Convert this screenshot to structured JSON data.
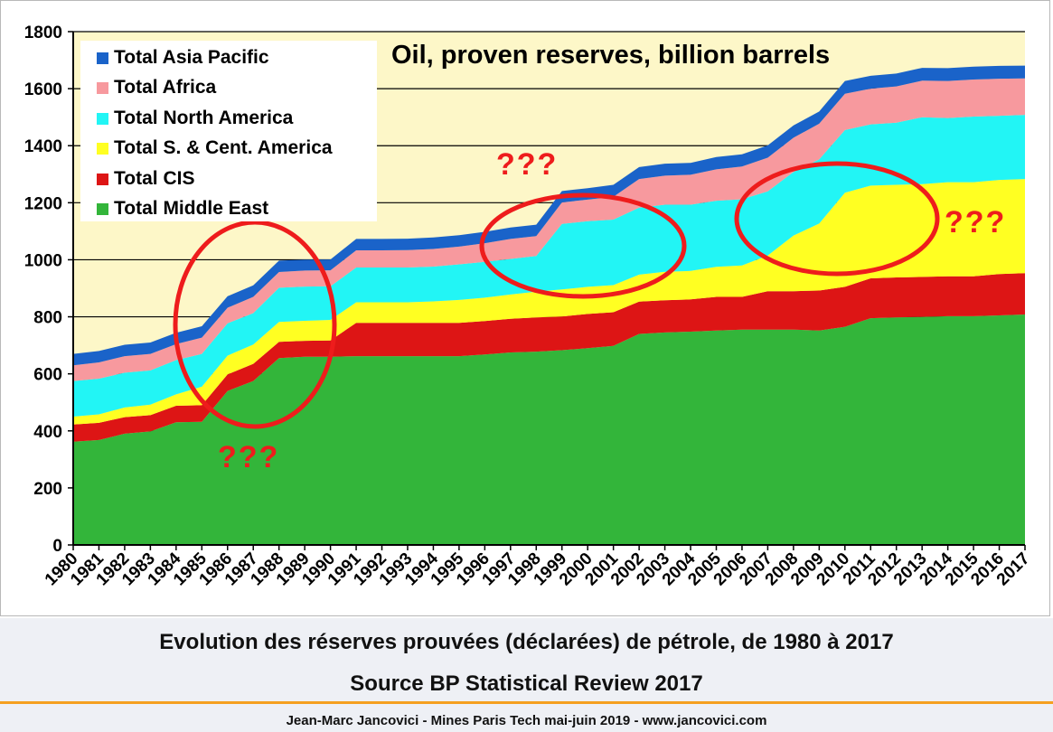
{
  "chart_data": {
    "type": "area",
    "stacked": true,
    "title": "Oil, proven reserves, billion barrels",
    "xlabel": "",
    "ylabel": "",
    "ylim": [
      0,
      1800
    ],
    "yticks": [
      0,
      200,
      400,
      600,
      800,
      1000,
      1200,
      1400,
      1600,
      1800
    ],
    "grid": true,
    "legend_position": "top-left",
    "plot_background": "#fdf7c8",
    "categories": [
      "1980",
      "1981",
      "1982",
      "1983",
      "1984",
      "1985",
      "1986",
      "1987",
      "1988",
      "1989",
      "1990",
      "1991",
      "1992",
      "1993",
      "1994",
      "1995",
      "1996",
      "1997",
      "1998",
      "1999",
      "2000",
      "2001",
      "2002",
      "2003",
      "2004",
      "2005",
      "2006",
      "2007",
      "2008",
      "2009",
      "2010",
      "2011",
      "2012",
      "2013",
      "2014",
      "2015",
      "2016",
      "2017"
    ],
    "series": [
      {
        "name": "Total Middle East",
        "color": "#33b53a",
        "values": [
          362,
          368,
          390,
          398,
          430,
          432,
          540,
          575,
          655,
          660,
          660,
          662,
          662,
          662,
          662,
          662,
          668,
          675,
          678,
          683,
          690,
          698,
          740,
          745,
          748,
          752,
          755,
          755,
          755,
          752,
          765,
          795,
          798,
          800,
          802,
          802,
          805,
          808
        ]
      },
      {
        "name": "Total CIS",
        "color": "#dd1515",
        "values": [
          60,
          60,
          58,
          57,
          58,
          58,
          58,
          60,
          57,
          56,
          57,
          117,
          117,
          117,
          117,
          117,
          117,
          118,
          120,
          118,
          120,
          118,
          113,
          113,
          113,
          118,
          115,
          135,
          135,
          140,
          140,
          140,
          140,
          140,
          140,
          140,
          145,
          145
        ]
      },
      {
        "name": "Total S. & Cent. America",
        "color": "#ffff22",
        "values": [
          28,
          30,
          34,
          37,
          40,
          65,
          66,
          68,
          70,
          70,
          72,
          72,
          72,
          72,
          75,
          80,
          82,
          85,
          90,
          95,
          95,
          95,
          95,
          100,
          100,
          105,
          110,
          125,
          195,
          235,
          330,
          325,
          325,
          325,
          330,
          330,
          330,
          330
        ]
      },
      {
        "name": "Total North America",
        "color": "#22f5f5",
        "values": [
          125,
          125,
          122,
          120,
          120,
          115,
          113,
          110,
          120,
          120,
          118,
          122,
          122,
          122,
          122,
          125,
          126,
          125,
          125,
          230,
          230,
          230,
          235,
          235,
          232,
          232,
          232,
          225,
          223,
          225,
          220,
          215,
          218,
          235,
          225,
          230,
          225,
          225
        ]
      },
      {
        "name": "Total Africa",
        "color": "#f7999e",
        "values": [
          55,
          57,
          58,
          58,
          56,
          57,
          55,
          57,
          55,
          56,
          56,
          60,
          60,
          61,
          62,
          62,
          65,
          70,
          70,
          75,
          76,
          80,
          100,
          102,
          105,
          110,
          115,
          118,
          120,
          125,
          127,
          125,
          127,
          128,
          130,
          130,
          130,
          128
        ]
      },
      {
        "name": "Total Asia Pacific",
        "color": "#1a63c9",
        "values": [
          40,
          40,
          40,
          40,
          40,
          40,
          40,
          40,
          40,
          38,
          38,
          40,
          40,
          40,
          40,
          40,
          40,
          40,
          40,
          40,
          40,
          42,
          42,
          42,
          42,
          43,
          43,
          43,
          43,
          43,
          45,
          45,
          45,
          45,
          45,
          45,
          45,
          45
        ]
      }
    ],
    "annotations": [
      {
        "text": "???",
        "color": "#ee1c1c"
      },
      {
        "text": "???",
        "color": "#ee1c1c"
      },
      {
        "text": "???",
        "color": "#ee1c1c"
      }
    ]
  },
  "caption": {
    "line1": "Evolution des réserves prouvées (déclarées) de pétrole, de 1980 à 2017",
    "line2": "Source BP Statistical Review 2017"
  },
  "footer": {
    "credit": "Jean-Marc Jancovici - Mines Paris Tech mai-juin 2019 - www.jancovici.com",
    "rule_color": "#f5a020"
  }
}
